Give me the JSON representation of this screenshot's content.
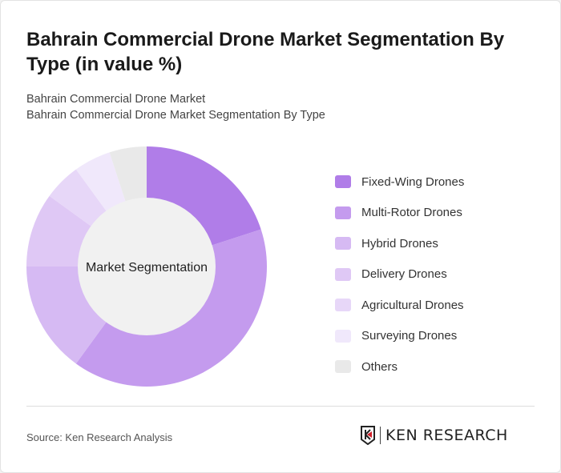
{
  "title": "Bahrain Commercial Drone Market Segmentation By Type (in value %)",
  "subtitle1": "Bahrain Commercial Drone Market",
  "subtitle2": "Bahrain Commercial Drone Market Segmentation By Type",
  "source": "Source: Ken Research Analysis",
  "logo_text": "KEN RESEARCH",
  "chart_data": {
    "type": "pie",
    "donut": true,
    "center_label": "Market Segmentation",
    "legend_position": "right",
    "categories": [
      "Fixed-Wing Drones",
      "Multi-Rotor Drones",
      "Hybrid Drones",
      "Delivery Drones",
      "Agricultural Drones",
      "Surveying Drones",
      "Others"
    ],
    "values": [
      20,
      40,
      15,
      10,
      5,
      5,
      5
    ],
    "colors": [
      "#b07de8",
      "#c49bee",
      "#d6baf3",
      "#dfc8f5",
      "#e7d7f8",
      "#f0e8fb",
      "#e9e9e9"
    ]
  }
}
